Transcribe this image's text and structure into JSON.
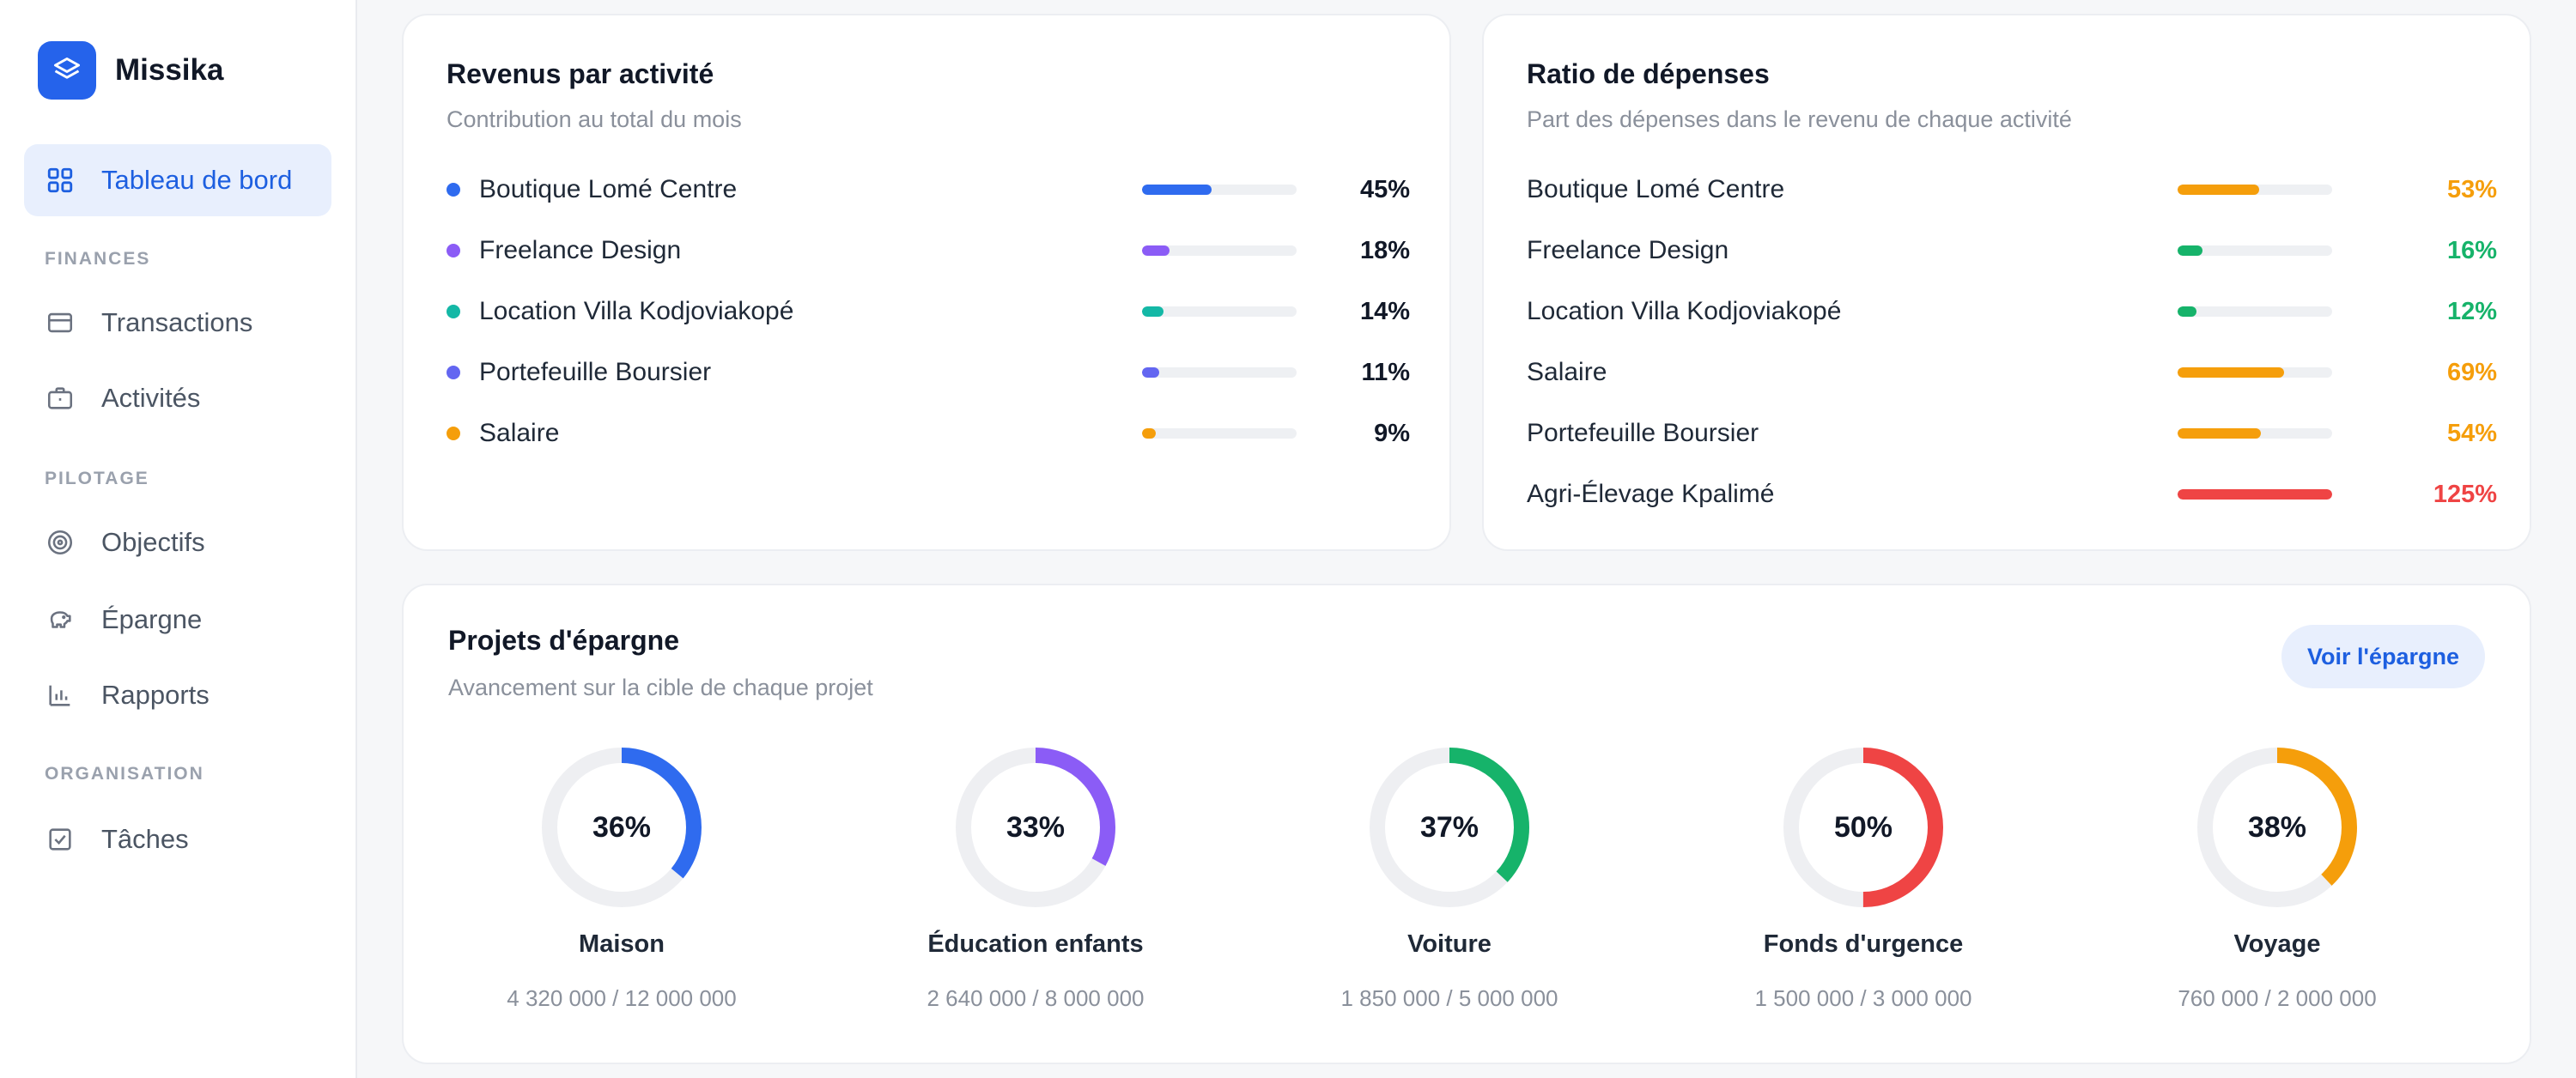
{
  "app": {
    "name": "Missika"
  },
  "nav": {
    "dashboard": "Tableau de bord",
    "section_finances": "FINANCES",
    "transactions": "Transactions",
    "activites": "Activités",
    "section_pilotage": "PILOTAGE",
    "objectifs": "Objectifs",
    "epargne": "Épargne",
    "rapports": "Rapports",
    "section_organisation": "ORGANISATION",
    "taches": "Tâches"
  },
  "revenus": {
    "title": "Revenus par activité",
    "subtitle": "Contribution au total du mois",
    "items": [
      {
        "label": "Boutique Lomé Centre",
        "percent_text": "45%",
        "value": 45,
        "color": "#2f6bef"
      },
      {
        "label": "Freelance Design",
        "percent_text": "18%",
        "value": 18,
        "color": "#8b5cf6"
      },
      {
        "label": "Location Villa Kodjoviakopé",
        "percent_text": "14%",
        "value": 14,
        "color": "#14b8a6"
      },
      {
        "label": "Portefeuille Boursier",
        "percent_text": "11%",
        "value": 11,
        "color": "#6366f1"
      },
      {
        "label": "Salaire",
        "percent_text": "9%",
        "value": 9,
        "color": "#f59e0b"
      }
    ]
  },
  "depenses": {
    "title": "Ratio de dépenses",
    "subtitle": "Part des dépenses dans le revenu de chaque activité",
    "items": [
      {
        "label": "Boutique Lomé Centre",
        "percent_text": "53%",
        "value": 53,
        "color": "#f59e0b"
      },
      {
        "label": "Freelance Design",
        "percent_text": "16%",
        "value": 16,
        "color": "#16b36a"
      },
      {
        "label": "Location Villa Kodjoviakopé",
        "percent_text": "12%",
        "value": 12,
        "color": "#16b36a"
      },
      {
        "label": "Salaire",
        "percent_text": "69%",
        "value": 69,
        "color": "#f59e0b"
      },
      {
        "label": "Portefeuille Boursier",
        "percent_text": "54%",
        "value": 54,
        "color": "#f59e0b"
      },
      {
        "label": "Agri-Élevage Kpalimé",
        "percent_text": "125%",
        "value": 125,
        "color": "#ef4444"
      }
    ]
  },
  "epargne": {
    "title": "Projets d'épargne",
    "subtitle": "Avancement sur la cible de chaque projet",
    "button": "Voir l'épargne",
    "projects": [
      {
        "name": "Maison",
        "percent_text": "36%",
        "value": 36,
        "amount": "4 320 000 / 12 000 000",
        "color": "#2f6bef"
      },
      {
        "name": "Éducation enfants",
        "percent_text": "33%",
        "value": 33,
        "amount": "2 640 000 / 8 000 000",
        "color": "#8b5cf6"
      },
      {
        "name": "Voiture",
        "percent_text": "37%",
        "value": 37,
        "amount": "1 850 000 / 5 000 000",
        "color": "#16b36a"
      },
      {
        "name": "Fonds d'urgence",
        "percent_text": "50%",
        "value": 50,
        "amount": "1 500 000 / 3 000 000",
        "color": "#ef4444"
      },
      {
        "name": "Voyage",
        "percent_text": "38%",
        "value": 38,
        "amount": "760 000 / 2 000 000",
        "color": "#f59e0b"
      }
    ]
  },
  "icons": {
    "brand": "layers-icon",
    "dashboard": "grid-icon",
    "transactions": "credit-card-icon",
    "activites": "briefcase-icon",
    "objectifs": "target-icon",
    "epargne": "piggy-bank-icon",
    "rapports": "bar-chart-icon",
    "taches": "checkbox-icon"
  }
}
